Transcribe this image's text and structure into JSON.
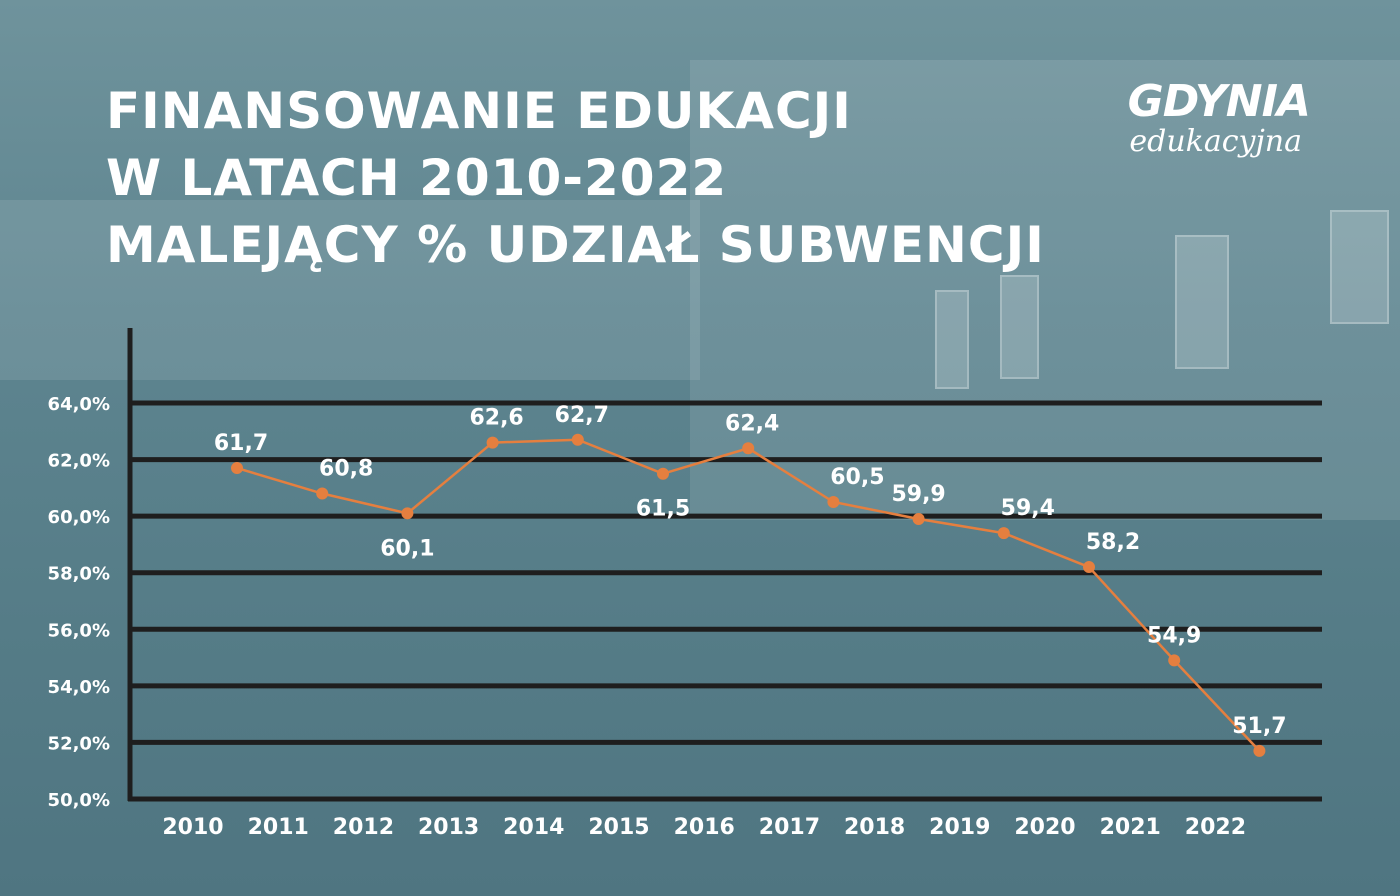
{
  "title_lines": [
    "FINANSOWANIE EDUKACJI",
    "W LATACH 2010-2022",
    "MALEJĄCY % UDZIAŁ SUBWENCJI"
  ],
  "logo": {
    "line1": "GDYNIA",
    "line2": "edukacyjna"
  },
  "colors": {
    "line": "#e57f3f",
    "grid": "#1e1e1e",
    "text": "#ffffff"
  },
  "chart_data": {
    "type": "line",
    "title": "FINANSOWANIE EDUKACJI W LATACH 2010-2022 MALEJĄCY % UDZIAŁ SUBWENCJI",
    "categories": [
      "2010",
      "2011",
      "2012",
      "2013",
      "2014",
      "2015",
      "2016",
      "2017",
      "2018",
      "2019",
      "2020",
      "2021",
      "2022"
    ],
    "values": [
      61.7,
      60.8,
      60.1,
      62.6,
      62.7,
      61.5,
      62.4,
      60.5,
      59.9,
      59.4,
      58.2,
      54.9,
      51.7
    ],
    "value_labels": [
      "61,7",
      "60,8",
      "60,1",
      "62,6",
      "62,7",
      "61,5",
      "62,4",
      "60,5",
      "59,9",
      "59,4",
      "58,2",
      "54,9",
      "51,7"
    ],
    "ylim": [
      50,
      64
    ],
    "yticks": [
      {
        "value": 64,
        "label": "64,0%"
      },
      {
        "value": 62,
        "label": "62,0%"
      },
      {
        "value": 60,
        "label": "60,0%"
      },
      {
        "value": 58,
        "label": "58,0%"
      },
      {
        "value": 56,
        "label": "56,0%"
      },
      {
        "value": 54,
        "label": "54,0%"
      },
      {
        "value": 52,
        "label": "52,0%"
      },
      {
        "value": 50,
        "label": "50,0%"
      }
    ],
    "grid": true
  }
}
